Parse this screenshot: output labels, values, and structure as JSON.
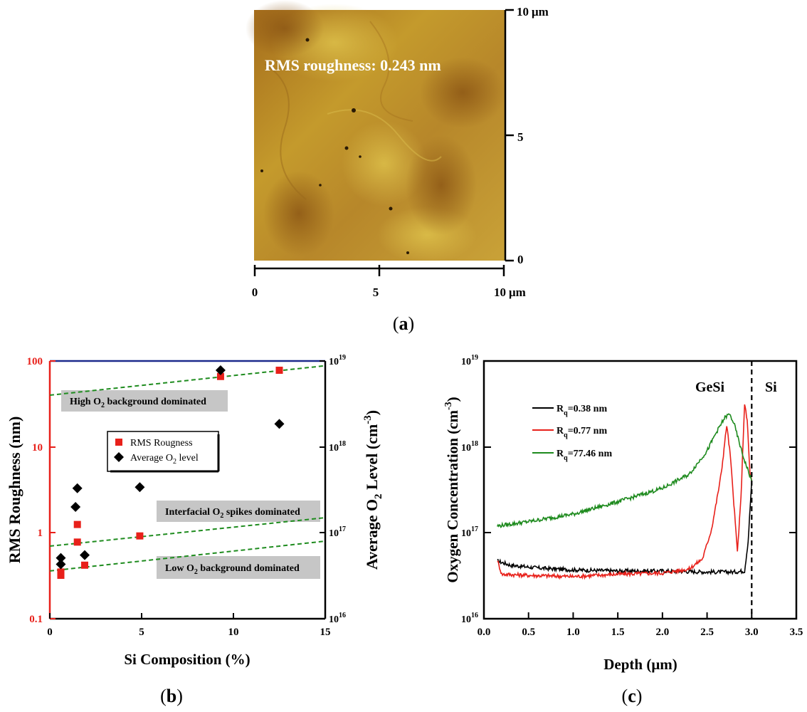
{
  "panel_a": {
    "label_open": "(",
    "label_letter": "a",
    "label_close": ")",
    "overlay": "RMS roughness: 0.243 nm",
    "unit": "μm",
    "x_ticks": [
      "0",
      "5",
      "10"
    ],
    "y_ticks": [
      "0",
      "5",
      "10"
    ],
    "colors": {
      "light": "#d8b83e",
      "mid": "#b78a26",
      "dark": "#8a5a16"
    }
  },
  "chart_data": [
    {
      "id": "b",
      "type": "scatter",
      "panel_label": {
        "open": "(",
        "letter": "b",
        "close": ")"
      },
      "xlabel": "Si Composition (%)",
      "ylabel": "RMS Roughness (nm)",
      "y2label": "Average O₂ Level (cm⁻³)",
      "y2label_parts": {
        "a": "Average O",
        "sub": "2",
        "b": " Level (cm",
        "sup": "-3",
        "c": ")"
      },
      "xlim": [
        0,
        15
      ],
      "ylim": [
        0.1,
        100
      ],
      "y2lim": [
        1e+16,
        1e+19
      ],
      "x_ticks": [
        "0",
        "5",
        "10",
        "15"
      ],
      "y_ticks": [
        "0.1",
        "1",
        "10",
        "100"
      ],
      "y2_ticks": [
        {
          "base": "10",
          "exp": "16"
        },
        {
          "base": "10",
          "exp": "17"
        },
        {
          "base": "10",
          "exp": "18"
        },
        {
          "base": "10",
          "exp": "19"
        }
      ],
      "series": [
        {
          "name": "RMS Rougness",
          "marker": "square",
          "color": "#e8201a",
          "axis": "left",
          "x": [
            0.6,
            0.6,
            1.5,
            1.5,
            1.9,
            4.9,
            9.3,
            12.5
          ],
          "y": [
            0.32,
            0.35,
            0.78,
            1.25,
            0.42,
            0.92,
            66,
            78
          ]
        },
        {
          "name": "Average O2 level",
          "marker": "diamond",
          "color": "#000000",
          "axis": "right",
          "x": [
            0.6,
            0.6,
            1.4,
            1.5,
            1.9,
            4.9,
            9.3,
            12.5
          ],
          "y": [
            4.3e+16,
            5.1e+16,
            2e+17,
            3.3e+17,
            5.5e+16,
            3.4e+17,
            7.8e+18,
            1.85e+18
          ]
        }
      ],
      "legend": [
        {
          "text": "RMS Rougness"
        },
        {
          "a": "Average O",
          "sub": "2",
          "b": " level"
        }
      ],
      "trend_lines": [
        {
          "x": [
            0,
            15
          ],
          "y": [
            40,
            88
          ]
        },
        {
          "x": [
            0,
            15
          ],
          "y": [
            0.7,
            1.5
          ]
        },
        {
          "x": [
            0,
            15
          ],
          "y": [
            0.36,
            0.8
          ]
        }
      ],
      "annotations": [
        {
          "a": "High O",
          "sub": "2",
          "b": " background dominated"
        },
        {
          "a": "Interfacial O",
          "sub": "2",
          "b": " spikes dominated"
        },
        {
          "a": "Low O",
          "sub": "2",
          "b": " background dominated"
        }
      ],
      "colors": {
        "left_axis": "#e8201a",
        "top_axis": "#1c2a8c",
        "trend": "#1f8c1f"
      }
    },
    {
      "id": "c",
      "type": "line",
      "panel_label": {
        "open": "(",
        "letter": "c",
        "close": ")"
      },
      "xlabel": "Depth (μm)",
      "ylabel": "Oxygen Concentration (cm⁻³)",
      "ylabel_parts": {
        "a": "Oxygen Concentration (cm",
        "sup": "-3",
        "b": ")"
      },
      "xlim": [
        0,
        3.5
      ],
      "ylim": [
        1e+16,
        1e+19
      ],
      "x_ticks": [
        "0.0",
        "0.5",
        "1.0",
        "1.5",
        "2.0",
        "2.5",
        "3.0",
        "3.5"
      ],
      "y_ticks": [
        {
          "base": "10",
          "exp": "16"
        },
        {
          "base": "10",
          "exp": "17"
        },
        {
          "base": "10",
          "exp": "18"
        },
        {
          "base": "10",
          "exp": "19"
        }
      ],
      "regions": [
        "GeSi",
        "Si"
      ],
      "boundary_x": 3.0,
      "series": [
        {
          "name": "Rq=0.38 nm",
          "label": {
            "a": "R",
            "sub": "q",
            "b": "=0.38 nm"
          },
          "color": "#000000",
          "x": [
            0.15,
            0.3,
            0.6,
            1.0,
            1.5,
            2.0,
            2.5,
            2.8,
            2.92,
            2.96,
            3.0
          ],
          "y": [
            4.7e+16,
            4.2e+16,
            3.9e+16,
            3.7e+16,
            3.6e+16,
            3.6e+16,
            3.5e+16,
            3.5e+16,
            3.6e+16,
            8e+16,
            4e+17
          ]
        },
        {
          "name": "Rq=0.77 nm",
          "label": {
            "a": "R",
            "sub": "q",
            "b": "=0.77 nm"
          },
          "color": "#e8201a",
          "x": [
            0.15,
            0.2,
            0.5,
            1.0,
            1.5,
            2.0,
            2.3,
            2.45,
            2.55,
            2.62,
            2.66,
            2.72,
            2.76,
            2.8,
            2.84,
            2.88,
            2.92,
            2.95,
            2.98,
            3.0
          ],
          "y": [
            4.8e+16,
            3.3e+16,
            3.2e+16,
            3.1e+16,
            3.3e+16,
            3.4e+16,
            3.8e+16,
            5e+16,
            1.1e+17,
            2.8e+17,
            5e+17,
            1.8e+18,
            8e+17,
            2.2e+17,
            6e+16,
            2.5e+17,
            3.2e+18,
            2e+18,
            5e+17,
            4e+17
          ]
        },
        {
          "name": "Rq=77.46 nm",
          "label": {
            "a": "R",
            "sub": "q",
            "b": "=77.46 nm"
          },
          "color": "#1d8a1d",
          "x": [
            0.15,
            0.5,
            1.0,
            1.5,
            2.0,
            2.3,
            2.5,
            2.6,
            2.7,
            2.75,
            2.8,
            2.9,
            3.0
          ],
          "y": [
            1.2e+17,
            1.35e+17,
            1.65e+17,
            2.3e+17,
            3.3e+17,
            4.8e+17,
            9e+17,
            1.45e+18,
            2.2e+18,
            2.4e+18,
            1.9e+18,
            8e+17,
            4e+17
          ]
        }
      ]
    }
  ]
}
